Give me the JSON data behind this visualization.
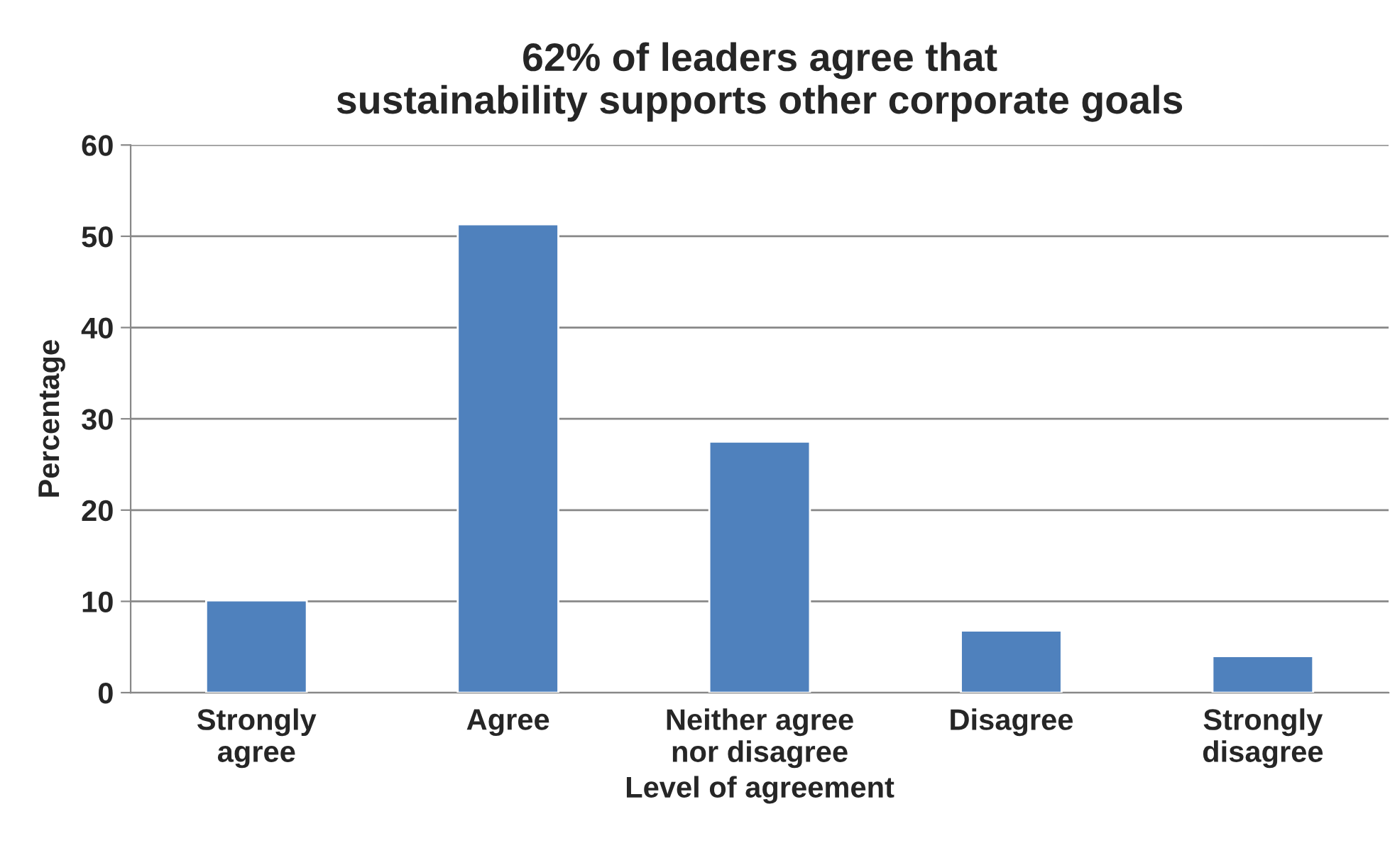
{
  "chart_data": {
    "type": "bar",
    "title": "62% of leaders agree that\nsustainability supports other corporate goals",
    "xlabel": "Level of agreement",
    "ylabel": "Percentage",
    "categories": [
      "Strongly\nagree",
      "Agree",
      "Neither agree\nnor disagree",
      "Disagree",
      "Strongly\ndisagree"
    ],
    "values": [
      10.1,
      51.3,
      27.5,
      6.8,
      4.0
    ],
    "color": "#4f81bd",
    "ylim": [
      0,
      60
    ],
    "yticks": [
      0,
      10,
      20,
      30,
      40,
      50,
      60
    ],
    "grid": "y",
    "legend": false
  }
}
